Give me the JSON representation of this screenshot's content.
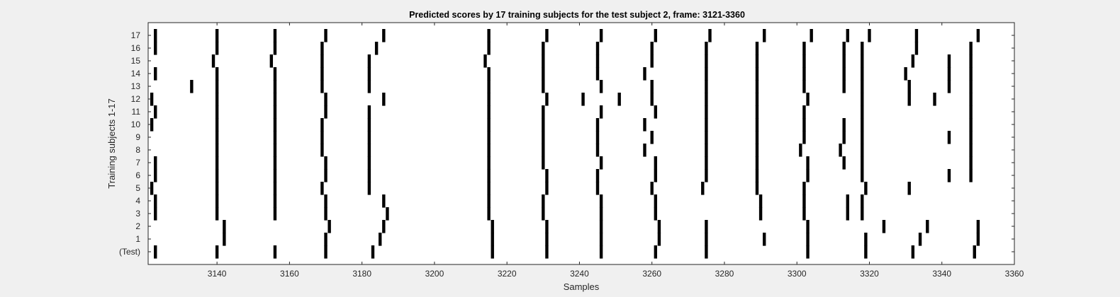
{
  "chart_data": {
    "type": "raster",
    "title": "Predicted scores by 17 training subjects for the test subject 2, frame: 3121-3360",
    "xlabel": "Samples",
    "ylabel": "Training subjects 1-17",
    "xlim": [
      3121,
      3360
    ],
    "x_ticks": [
      3140,
      3160,
      3180,
      3200,
      3220,
      3240,
      3260,
      3280,
      3300,
      3320,
      3340,
      3360
    ],
    "rows": [
      "(Test)",
      "1",
      "2",
      "3",
      "4",
      "5",
      "6",
      "7",
      "8",
      "9",
      "10",
      "11",
      "12",
      "13",
      "14",
      "15",
      "16",
      "17"
    ],
    "grid": false,
    "legend": "none",
    "colors": {
      "mark": "#000000",
      "plot_background": "#ffffff",
      "figure_background": "#f0f0f0"
    },
    "events": [
      [
        3123,
        3140,
        3156,
        3170,
        3183,
        3216,
        3231,
        3246,
        3261,
        3275,
        3303,
        3319,
        3332,
        3349
      ],
      [
        3142,
        3170,
        3185,
        3216,
        3231,
        3246,
        3262,
        3275,
        3291,
        3303,
        3319,
        3334,
        3350
      ],
      [
        3142,
        3171,
        3186,
        3216,
        3231,
        3246,
        3262,
        3275,
        3303,
        3324,
        3336,
        3350
      ],
      [
        3123,
        3140,
        3156,
        3170,
        3187,
        3215,
        3230,
        3246,
        3261,
        3290,
        3302,
        3314,
        3318
      ],
      [
        3123,
        3140,
        3156,
        3170,
        3186,
        3215,
        3230,
        3246,
        3261,
        3290,
        3302,
        3314,
        3318
      ],
      [
        3122,
        3140,
        3156,
        3169,
        3182,
        3215,
        3231,
        3245,
        3260,
        3274,
        3289,
        3302,
        3319,
        3331
      ],
      [
        3123,
        3140,
        3156,
        3170,
        3182,
        3215,
        3231,
        3245,
        3261,
        3275,
        3289,
        3303,
        3318,
        3342,
        3348
      ],
      [
        3123,
        3140,
        3156,
        3170,
        3182,
        3215,
        3230,
        3246,
        3261,
        3275,
        3289,
        3303,
        3313,
        3318,
        3348
      ],
      [
        3140,
        3156,
        3169,
        3182,
        3215,
        3230,
        3245,
        3258,
        3275,
        3289,
        3301,
        3312,
        3318,
        3348
      ],
      [
        3140,
        3156,
        3169,
        3182,
        3215,
        3230,
        3245,
        3260,
        3275,
        3289,
        3302,
        3313,
        3318,
        3342,
        3348
      ],
      [
        3122,
        3140,
        3156,
        3169,
        3182,
        3215,
        3230,
        3245,
        3258,
        3275,
        3289,
        3302,
        3313,
        3318,
        3348
      ],
      [
        3123,
        3140,
        3156,
        3170,
        3182,
        3215,
        3230,
        3246,
        3261,
        3275,
        3289,
        3302,
        3318,
        3348
      ],
      [
        3122,
        3140,
        3156,
        3170,
        3186,
        3215,
        3231,
        3241,
        3251,
        3260,
        3275,
        3289,
        3303,
        3318,
        3331,
        3338,
        3348
      ],
      [
        3133,
        3140,
        3156,
        3169,
        3182,
        3215,
        3230,
        3246,
        3260,
        3275,
        3289,
        3302,
        3313,
        3318,
        3331,
        3342,
        3348
      ],
      [
        3123,
        3140,
        3156,
        3169,
        3182,
        3215,
        3230,
        3245,
        3258,
        3275,
        3289,
        3302,
        3313,
        3318,
        3330,
        3342,
        3348
      ],
      [
        3139,
        3155,
        3169,
        3182,
        3214,
        3230,
        3245,
        3260,
        3275,
        3289,
        3302,
        3313,
        3318,
        3332,
        3342,
        3348
      ],
      [
        3123,
        3140,
        3156,
        3169,
        3184,
        3215,
        3230,
        3245,
        3260,
        3275,
        3289,
        3302,
        3313,
        3318,
        3333,
        3348
      ],
      [
        3123,
        3140,
        3156,
        3170,
        3186,
        3215,
        3231,
        3246,
        3261,
        3276,
        3291,
        3304,
        3314,
        3320,
        3333,
        3350
      ]
    ]
  }
}
